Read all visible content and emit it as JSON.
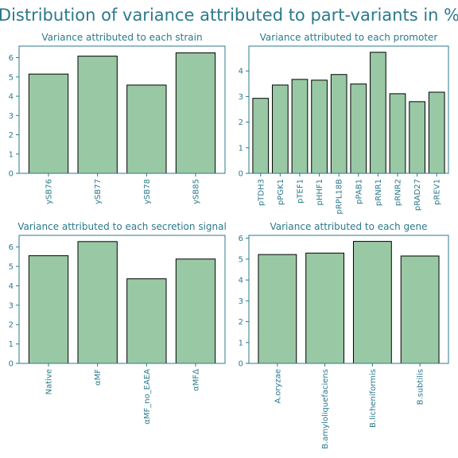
{
  "figure": {
    "title": "Distribution of variance attributed to part-variants in %",
    "text_color": "#2b7a8c",
    "bar_color": "#99c8a4",
    "bar_edge": "#000000"
  },
  "chart_data": [
    {
      "type": "bar",
      "title": "Variance attributed to each strain",
      "categories": [
        "ySB76",
        "ySB77",
        "ySB78",
        "ySB85"
      ],
      "values": [
        5.15,
        6.08,
        4.58,
        6.25
      ],
      "ylim": [
        0,
        6.6
      ],
      "yticks": [
        0,
        1,
        2,
        3,
        4,
        5,
        6
      ]
    },
    {
      "type": "bar",
      "title": "Variance attributed to each promoter",
      "categories": [
        "pTDH3",
        "pPGK1",
        "pTEF1",
        "pHHF1",
        "pRPL18B",
        "pPAB1",
        "pRNR1",
        "pRNR2",
        "pRAD27",
        "pREV1"
      ],
      "values": [
        2.93,
        3.45,
        3.67,
        3.64,
        3.86,
        3.49,
        4.73,
        3.11,
        2.8,
        3.17
      ],
      "ylim": [
        0,
        4.97
      ],
      "yticks": [
        0,
        1,
        2,
        3,
        4
      ]
    },
    {
      "type": "bar",
      "title": "Variance attributed to each secretion signal",
      "categories": [
        "Native",
        "αMF",
        "αMF_no_EAEA",
        "αMFΔ"
      ],
      "values": [
        5.55,
        6.28,
        4.36,
        5.38
      ],
      "ylim": [
        0,
        6.6
      ],
      "yticks": [
        0,
        1,
        2,
        3,
        4,
        5,
        6
      ]
    },
    {
      "type": "bar",
      "title": "Variance attributed to each gene",
      "categories": [
        "A.oryzae",
        "B.amyloliquefaciens",
        "B.licheniformis",
        "B.subtilis"
      ],
      "values": [
        5.22,
        5.29,
        5.85,
        5.15
      ],
      "ylim": [
        0,
        6.14
      ],
      "yticks": [
        0,
        1,
        2,
        3,
        4,
        5,
        6
      ]
    }
  ]
}
